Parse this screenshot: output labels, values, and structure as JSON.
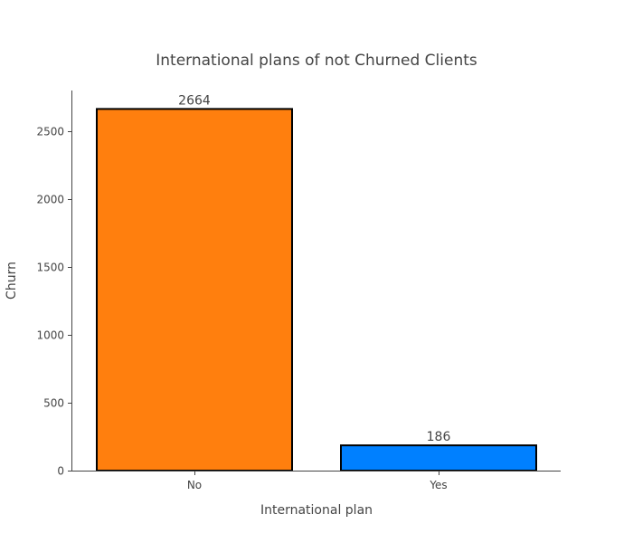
{
  "chart_data": {
    "type": "bar",
    "title": "International plans of not Churned Clients",
    "xlabel": "International plan",
    "ylabel": "Churn",
    "categories": [
      "No",
      "Yes"
    ],
    "values": [
      2664,
      186
    ],
    "data_labels": [
      "2664",
      "186"
    ],
    "bar_colors": [
      "#ff7f0e",
      "#0080ff"
    ],
    "bar_outline_color": "#000000",
    "ylim": [
      0,
      2800
    ],
    "yticks": [
      0,
      500,
      1000,
      1500,
      2000,
      2500
    ],
    "ytick_labels": [
      "0",
      "500",
      "1000",
      "1500",
      "2000",
      "2500"
    ],
    "grid": false,
    "legend": false
  }
}
